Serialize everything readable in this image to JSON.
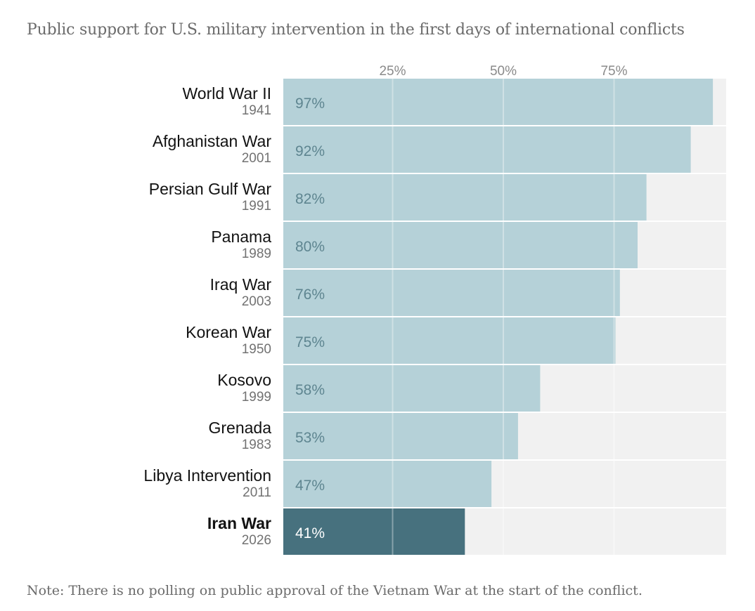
{
  "title": "Public support for U.S. military intervention in the first days of international conflicts",
  "note": "Note: There is no polling on public approval of the Vietnam War at the start of the conflict.",
  "colors": {
    "bar": "#b5d1d8",
    "bar_highlight": "#47717e",
    "track": "#f1f1f1",
    "value_text": "#5e8590",
    "value_text_highlight": "#ffffff"
  },
  "chart_data": {
    "type": "bar",
    "orientation": "horizontal",
    "title": "Public support for U.S. military intervention in the first days of international conflicts",
    "xlim": [
      0,
      100
    ],
    "ticks": [
      {
        "value": 25,
        "label": "25%"
      },
      {
        "value": 50,
        "label": "50%"
      },
      {
        "value": 75,
        "label": "75%"
      }
    ],
    "categories": [
      "World War II",
      "Afghanistan War",
      "Persian Gulf War",
      "Panama",
      "Iraq War",
      "Korean War",
      "Kosovo",
      "Grenada",
      "Libya Intervention",
      "Iran War"
    ],
    "years": [
      "1941",
      "2001",
      "1991",
      "1989",
      "2003",
      "1950",
      "1999",
      "1983",
      "2011",
      "2026"
    ],
    "values": [
      97,
      92,
      82,
      80,
      76,
      75,
      58,
      53,
      47,
      41
    ],
    "value_labels": [
      "97%",
      "92%",
      "82%",
      "80%",
      "76%",
      "75%",
      "58%",
      "53%",
      "47%",
      "41%"
    ],
    "highlight": "Iran War"
  }
}
